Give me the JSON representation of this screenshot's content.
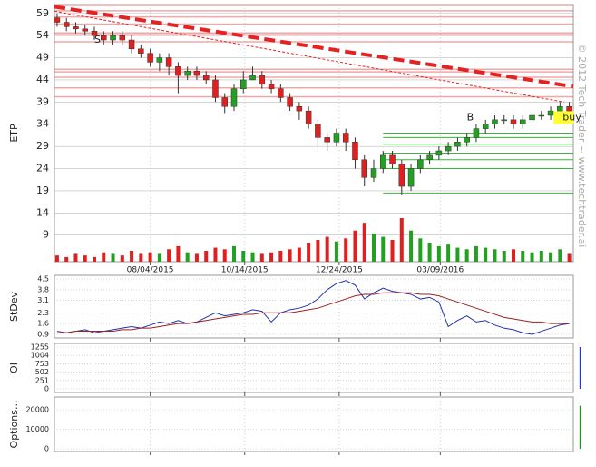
{
  "watermark": "© 2012 Tech Trader ~ www.techtrader.ai",
  "chart_data": [
    {
      "type": "candlestick",
      "ylabel": "ETP",
      "x": [
        "05/26/2015",
        "06/02/2015",
        "06/09/2015",
        "06/16/2015",
        "06/23/2015",
        "06/30/2015",
        "07/07/2015",
        "07/14/2015",
        "07/21/2015",
        "07/28/2015",
        "08/04/2015",
        "08/11/2015",
        "08/18/2015",
        "08/25/2015",
        "09/01/2015",
        "09/08/2015",
        "09/15/2015",
        "09/22/2015",
        "09/29/2015",
        "10/06/2015",
        "10/13/2015",
        "10/20/2015",
        "10/27/2015",
        "11/03/2015",
        "11/10/2015",
        "11/17/2015",
        "11/24/2015",
        "12/01/2015",
        "12/08/2015",
        "12/15/2015",
        "12/22/2015",
        "12/29/2015",
        "01/05/2016",
        "01/12/2016",
        "01/19/2016",
        "01/26/2016",
        "02/02/2016",
        "02/09/2016",
        "02/16/2016",
        "02/23/2016",
        "03/01/2016",
        "03/08/2016",
        "03/15/2016",
        "03/22/2016",
        "03/29/2016",
        "04/05/2016",
        "04/12/2016",
        "04/19/2016",
        "04/26/2016",
        "05/03/2016",
        "05/10/2016",
        "05/17/2016",
        "05/24/2016",
        "05/31/2016",
        "06/07/2016",
        "06/14/2016"
      ],
      "open": [
        58,
        57,
        56,
        55.5,
        55,
        54,
        53,
        54,
        53,
        51,
        50,
        48,
        49,
        47,
        45,
        46,
        45,
        44,
        40,
        38,
        42,
        44,
        45,
        43,
        42,
        40,
        38,
        37,
        34,
        31,
        30,
        32,
        30,
        26,
        22,
        24,
        27,
        25,
        20,
        24,
        26,
        27,
        28,
        29,
        30,
        31,
        33,
        34,
        35,
        35,
        34,
        35,
        36,
        36,
        37,
        38
      ],
      "high": [
        59,
        58,
        57,
        56.5,
        56,
        55,
        55,
        55,
        54,
        52,
        51,
        50,
        50,
        48,
        47,
        47,
        46,
        45,
        41,
        43,
        46,
        47,
        46,
        44,
        43,
        41,
        39,
        38,
        35,
        32,
        33,
        33,
        31,
        27,
        26,
        28,
        28,
        26,
        25,
        27,
        28,
        29,
        30,
        31,
        32,
        34,
        35,
        36,
        36,
        36,
        36,
        37,
        37,
        38,
        39,
        39
      ],
      "low": [
        56,
        55,
        54.5,
        54,
        53,
        52,
        52,
        52,
        50,
        49,
        47,
        46,
        45,
        41,
        44,
        44,
        43,
        39,
        36.5,
        37,
        41,
        44,
        42,
        41,
        39,
        37,
        35,
        33,
        29,
        28,
        29,
        28,
        24,
        20,
        21,
        23,
        24,
        18,
        19,
        23,
        25,
        26,
        27,
        28,
        29,
        30,
        32,
        33,
        34,
        33,
        33,
        34,
        35,
        35,
        36,
        36
      ],
      "close": [
        57,
        56,
        55.5,
        55,
        54,
        53,
        54,
        53,
        51,
        50,
        48,
        49,
        47,
        45,
        46,
        45,
        44,
        40,
        38,
        42,
        44,
        45,
        43,
        42,
        40,
        38,
        37,
        34,
        31,
        30,
        32,
        30,
        26,
        22,
        24,
        27,
        25,
        20,
        24,
        26,
        27,
        28,
        29,
        30,
        31,
        33,
        34,
        35,
        35,
        34,
        35,
        36,
        36,
        37,
        38,
        37
      ],
      "volume": [
        4,
        3,
        5,
        4,
        3,
        6,
        5,
        4,
        7,
        5,
        6,
        5,
        8,
        10,
        6,
        5,
        7,
        9,
        8,
        10,
        7,
        6,
        5,
        6,
        7,
        8,
        9,
        12,
        14,
        16,
        13,
        15,
        20,
        25,
        18,
        16,
        14,
        28,
        20,
        15,
        12,
        10,
        11,
        9,
        8,
        10,
        9,
        8,
        7,
        8,
        7,
        6,
        7,
        6,
        8,
        5
      ],
      "up_color": "#22a022",
      "down_color": "#e02020",
      "ylim": [
        3,
        61
      ],
      "yticks": [
        59,
        54,
        49,
        44,
        39,
        34,
        29,
        24,
        19,
        14,
        9
      ],
      "xlim": [
        "05/24/2015",
        "06/17/2016"
      ],
      "xticks": [
        "08/04/2015",
        "10/14/2015",
        "12/24/2015",
        "03/09/2016"
      ],
      "resistance_levels": [
        60.8,
        59.6,
        58.2,
        56.6,
        54.6,
        54.2,
        52.6,
        46.4,
        45.8,
        44.6,
        42.2,
        40.2
      ],
      "support_levels": [
        32,
        31,
        29.5,
        27.5,
        26,
        24,
        18.5
      ],
      "support_from": "01/26/2016",
      "trend_lines": [
        {
          "x": [
            "05/24/2015",
            "06/17/2016"
          ],
          "y": [
            60.5,
            42.5
          ],
          "color": "#e52222",
          "width": 4
        },
        {
          "x": [
            "05/24/2015",
            "06/10/2016"
          ],
          "y": [
            59.5,
            39
          ],
          "color": "#e52222",
          "width": 1
        }
      ],
      "annotations": [
        {
          "text": "S",
          "x": "06/23/2015",
          "y": 53
        },
        {
          "text": "B",
          "x": "03/29/2016",
          "y": 35.5
        },
        {
          "text": "buy",
          "x": "06/09/2016",
          "y": 35.5
        }
      ]
    },
    {
      "type": "line",
      "ylabel": "StDev",
      "ylim": [
        0.66,
        4.74
      ],
      "yticks": [
        4.5,
        3.8,
        3.1,
        2.3,
        1.6,
        0.9
      ],
      "series": [
        {
          "color": "#2233aa",
          "values": [
            1.1,
            1.0,
            1.1,
            1.2,
            1.0,
            1.1,
            1.2,
            1.3,
            1.4,
            1.3,
            1.5,
            1.7,
            1.6,
            1.8,
            1.6,
            1.7,
            2.0,
            2.3,
            2.1,
            2.2,
            2.3,
            2.5,
            2.4,
            1.7,
            2.3,
            2.5,
            2.6,
            2.8,
            3.2,
            3.8,
            4.2,
            4.4,
            4.1,
            3.2,
            3.6,
            3.9,
            3.7,
            3.6,
            3.5,
            3.2,
            3.3,
            3.0,
            1.4,
            1.8,
            2.1,
            1.7,
            1.8,
            1.5,
            1.3,
            1.2,
            1.0,
            0.9,
            1.1,
            1.3,
            1.5,
            1.6
          ]
        },
        {
          "color": "#992222",
          "values": [
            1.0,
            1.0,
            1.1,
            1.1,
            1.1,
            1.1,
            1.1,
            1.2,
            1.2,
            1.3,
            1.3,
            1.4,
            1.5,
            1.6,
            1.6,
            1.7,
            1.8,
            1.9,
            2.0,
            2.1,
            2.2,
            2.2,
            2.3,
            2.3,
            2.3,
            2.3,
            2.4,
            2.5,
            2.6,
            2.8,
            3.0,
            3.2,
            3.4,
            3.5,
            3.5,
            3.6,
            3.6,
            3.6,
            3.6,
            3.5,
            3.5,
            3.4,
            3.2,
            3.0,
            2.8,
            2.6,
            2.4,
            2.2,
            2.0,
            1.9,
            1.8,
            1.7,
            1.7,
            1.6,
            1.6,
            1.6
          ]
        }
      ]
    },
    {
      "type": "spike",
      "ylabel": "OI",
      "ylim": [
        -109,
        1364
      ],
      "yticks": [
        1255,
        1004,
        753,
        502,
        251,
        0
      ],
      "color": "#2233ee",
      "values": [
        0,
        0,
        0,
        0,
        0,
        0,
        0,
        0,
        0,
        0,
        0,
        0,
        0,
        0,
        0,
        0,
        0,
        0,
        0,
        0,
        0,
        0,
        0,
        0,
        0,
        0,
        0,
        0,
        0,
        0,
        0,
        0,
        0,
        0,
        0,
        0,
        0,
        0,
        0,
        0,
        0,
        0,
        0,
        0,
        0,
        0,
        0,
        0,
        0,
        0,
        0,
        0,
        0,
        0,
        0,
        1255
      ]
    },
    {
      "type": "spike",
      "ylabel": "Options...",
      "ylim": [
        -1395,
        26510
      ],
      "yticks": [
        20000,
        10000,
        0
      ],
      "color": "#119911",
      "values": [
        0,
        0,
        0,
        0,
        0,
        0,
        0,
        0,
        0,
        0,
        0,
        0,
        0,
        0,
        0,
        0,
        0,
        0,
        0,
        0,
        0,
        0,
        0,
        0,
        0,
        0,
        0,
        0,
        0,
        0,
        0,
        0,
        0,
        0,
        0,
        0,
        0,
        0,
        0,
        0,
        0,
        0,
        0,
        0,
        0,
        0,
        0,
        0,
        0,
        0,
        0,
        0,
        0,
        0,
        0,
        22000
      ]
    }
  ]
}
